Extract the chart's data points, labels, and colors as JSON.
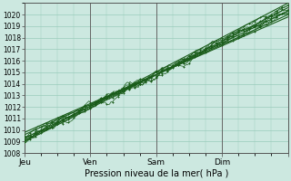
{
  "xlabel": "Pression niveau de la mer( hPa )",
  "bg_color": "#cce8e0",
  "plot_bg_color": "#cce8e0",
  "grid_color": "#99ccbb",
  "line_color": "#1a5c1a",
  "ylim": [
    1008,
    1021
  ],
  "yticks": [
    1008,
    1009,
    1010,
    1011,
    1012,
    1013,
    1014,
    1015,
    1016,
    1017,
    1018,
    1019,
    1020
  ],
  "xlim": [
    0,
    96
  ],
  "xtick_positions": [
    0,
    24,
    48,
    72,
    96
  ],
  "xtick_labels": [
    "Jeu",
    "Ven",
    "Sam",
    "Dim",
    ""
  ],
  "figsize": [
    3.2,
    2.0
  ],
  "dpi": 100,
  "smooth_lines": [
    {
      "y0": 1009.3,
      "y1": 1020.3
    },
    {
      "y0": 1009.0,
      "y1": 1020.6
    },
    {
      "y0": 1009.6,
      "y1": 1020.0
    },
    {
      "y0": 1009.1,
      "y1": 1021.0
    },
    {
      "y0": 1009.8,
      "y1": 1019.8
    }
  ],
  "noisy_lines": [
    {
      "y0": 1009.2,
      "y1": 1020.2,
      "noise": 0.35,
      "seed": 10
    },
    {
      "y0": 1009.4,
      "y1": 1020.4,
      "noise": 0.45,
      "seed": 20
    },
    {
      "y0": 1009.1,
      "y1": 1020.5,
      "noise": 0.55,
      "seed": 30
    },
    {
      "y0": 1009.5,
      "y1": 1020.1,
      "noise": 0.4,
      "seed": 40
    },
    {
      "y0": 1009.3,
      "y1": 1020.7,
      "noise": 0.5,
      "seed": 50
    },
    {
      "y0": 1009.0,
      "y1": 1020.9,
      "noise": 0.3,
      "seed": 60
    }
  ]
}
